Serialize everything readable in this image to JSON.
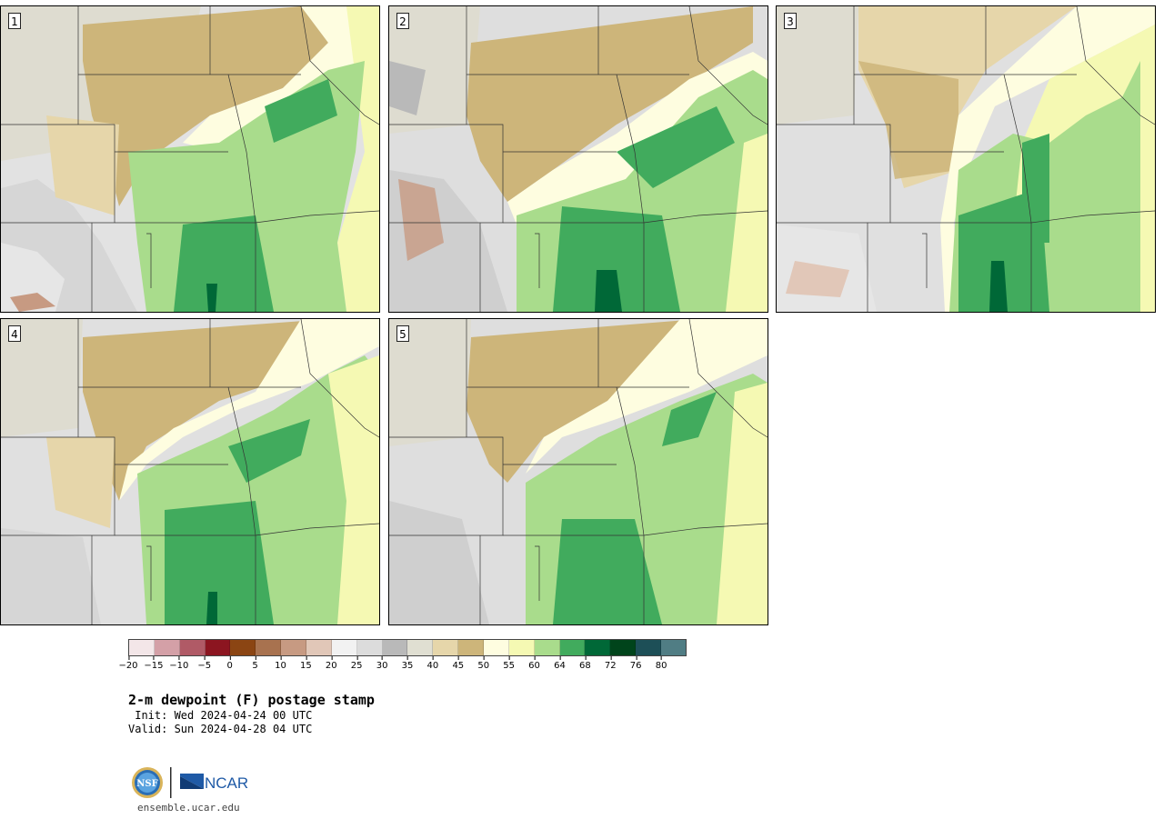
{
  "panels": [
    {
      "label": "1"
    },
    {
      "label": "2"
    },
    {
      "label": "3"
    },
    {
      "label": "4"
    },
    {
      "label": "5"
    }
  ],
  "colorbar": {
    "colors": [
      "#f3e6e8",
      "#d4a0a7",
      "#b05a66",
      "#8c1520",
      "#8b4513",
      "#a8724f",
      "#c79a82",
      "#e1c7b8",
      "#f2f2f2",
      "#dcdcdc",
      "#b9b9b9",
      "#e0dfd2",
      "#e6d6aa",
      "#cdb57a",
      "#fefde0",
      "#f5f9b3",
      "#a9dc8c",
      "#41ab5d",
      "#006837",
      "#00441b",
      "#1d4f57",
      "#507d84"
    ],
    "ticks": [
      "−20",
      "−15",
      "−10",
      "−5",
      "0",
      "5",
      "10",
      "15",
      "20",
      "25",
      "30",
      "35",
      "40",
      "45",
      "50",
      "55",
      "60",
      "64",
      "68",
      "72",
      "76",
      "80"
    ]
  },
  "title": "2-m dewpoint (F) postage stamp",
  "init": " Init: Wed 2024-04-24 00 UTC",
  "valid": "Valid: Sun 2024-04-28 04 UTC",
  "logo": {
    "nsf": "NSF",
    "ncar": "NCAR"
  },
  "url": "ensemble.ucar.edu"
}
